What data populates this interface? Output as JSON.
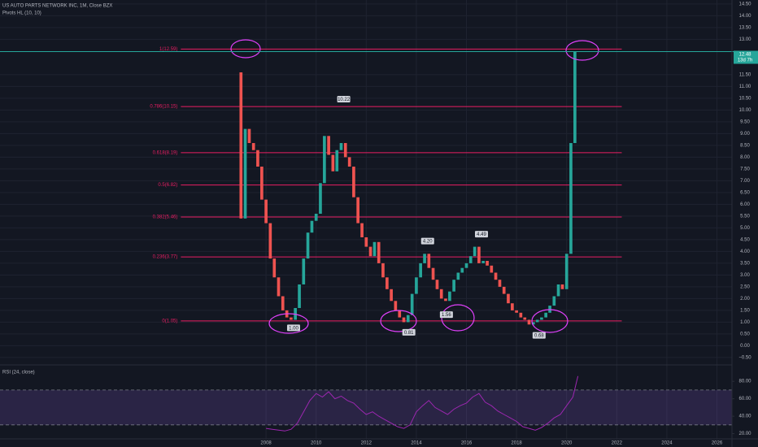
{
  "chart_data": {
    "type": "candlestick",
    "title": "US AUTO PARTS NETWORK INC, 1M, Close BZX",
    "subtitle": "Pivots HL (10, 10)",
    "x": [
      2007,
      2007.17,
      2007.33,
      2007.5,
      2007.67,
      2007.83,
      2008,
      2008.17,
      2008.33,
      2008.5,
      2008.67,
      2008.83,
      2009,
      2009.17,
      2009.33,
      2009.5,
      2009.67,
      2009.83,
      2010,
      2010.17,
      2010.33,
      2010.5,
      2010.67,
      2010.83,
      2011,
      2011.17,
      2011.33,
      2011.5,
      2011.67,
      2011.83,
      2012,
      2012.17,
      2012.33,
      2012.5,
      2012.67,
      2012.83,
      2013,
      2013.17,
      2013.33,
      2013.5,
      2013.67,
      2013.83,
      2014,
      2014.17,
      2014.33,
      2014.5,
      2014.67,
      2014.83,
      2015,
      2015.17,
      2015.33,
      2015.5,
      2015.67,
      2015.83,
      2016,
      2016.17,
      2016.33,
      2016.5,
      2016.67,
      2016.83,
      2017,
      2017.17,
      2017.33,
      2017.5,
      2017.67,
      2017.83,
      2018,
      2018.17,
      2018.33,
      2018.5,
      2018.67,
      2018.83,
      2019,
      2019.17,
      2019.33,
      2019.5,
      2019.67,
      2019.83,
      2020,
      2020.17,
      2020.33
    ],
    "open": [
      11.6,
      5.4,
      9.2,
      8.6,
      8.3,
      7.6,
      6.2,
      5.2,
      3.7,
      2.9,
      2.1,
      1.5,
      1.2,
      1.1,
      1.6,
      2.6,
      3.7,
      4.8,
      5.3,
      5.6,
      6.9,
      8.9,
      8.1,
      7.4,
      8.3,
      8.6,
      8.0,
      7.6,
      6.3,
      5.2,
      4.6,
      4.2,
      3.8,
      4.4,
      3.5,
      2.9,
      2.4,
      1.9,
      1.5,
      1.2,
      1.0,
      1.3,
      2.2,
      2.9,
      3.5,
      3.9,
      3.3,
      2.8,
      2.4,
      2.0,
      1.9,
      2.3,
      2.8,
      3.1,
      3.3,
      3.5,
      3.8,
      4.2,
      3.5,
      3.6,
      3.4,
      3.1,
      2.8,
      2.5,
      2.2,
      1.8,
      1.5,
      1.4,
      1.2,
      1.1,
      0.9,
      1.0,
      1.1,
      1.2,
      1.4,
      1.7,
      2.1,
      2.6,
      2.4,
      3.9,
      8.6
    ],
    "close": [
      5.4,
      9.2,
      8.6,
      8.3,
      7.6,
      6.2,
      5.2,
      3.7,
      2.9,
      2.1,
      1.5,
      1.2,
      1.1,
      1.6,
      2.6,
      3.7,
      4.8,
      5.3,
      5.6,
      6.9,
      8.9,
      8.1,
      7.4,
      8.3,
      8.6,
      8.0,
      7.6,
      6.3,
      5.2,
      4.6,
      4.2,
      3.8,
      4.4,
      3.5,
      2.9,
      2.4,
      1.9,
      1.5,
      1.2,
      1.0,
      1.3,
      2.2,
      2.9,
      3.5,
      3.9,
      3.3,
      2.8,
      2.4,
      2.0,
      1.9,
      2.3,
      2.8,
      3.1,
      3.3,
      3.5,
      3.8,
      4.2,
      3.5,
      3.6,
      3.4,
      3.1,
      2.8,
      2.5,
      2.2,
      1.8,
      1.5,
      1.4,
      1.2,
      1.1,
      0.9,
      1.0,
      1.1,
      1.2,
      1.4,
      1.7,
      2.1,
      2.6,
      2.4,
      3.9,
      8.6,
      12.48
    ],
    "up_color": "#26a69a",
    "down_color": "#ef5350",
    "xlim": [
      1997.38,
      2026.6
    ],
    "xticks": [
      2008,
      2010,
      2012,
      2014,
      2016,
      2018,
      2020,
      2022,
      2024,
      2026
    ],
    "ylim": [
      -0.78,
      14.67
    ],
    "yticks": [
      {
        "value": 14.5,
        "label": "14.50"
      },
      {
        "value": 14,
        "label": "14.00"
      },
      {
        "value": 13.5,
        "label": "13.50"
      },
      {
        "value": 13,
        "label": "13.00"
      },
      {
        "value": 11.5,
        "label": "11.50"
      },
      {
        "value": 11,
        "label": "11.00"
      },
      {
        "value": 10.5,
        "label": "10.50"
      },
      {
        "value": 10,
        "label": "10.00"
      },
      {
        "value": 9.5,
        "label": "9.50"
      },
      {
        "value": 9,
        "label": "9.00"
      },
      {
        "value": 8.5,
        "label": "8.50"
      },
      {
        "value": 8,
        "label": "8.00"
      },
      {
        "value": 7.5,
        "label": "7.50"
      },
      {
        "value": 7,
        "label": "7.00"
      },
      {
        "value": 6.5,
        "label": "6.50"
      },
      {
        "value": 6,
        "label": "6.00"
      },
      {
        "value": 5.5,
        "label": "5.50"
      },
      {
        "value": 5,
        "label": "5.00"
      },
      {
        "value": 4.5,
        "label": "4.50"
      },
      {
        "value": 4,
        "label": "4.00"
      },
      {
        "value": 3.5,
        "label": "3.50"
      },
      {
        "value": 3,
        "label": "3.00"
      },
      {
        "value": 2.5,
        "label": "2.50"
      },
      {
        "value": 2,
        "label": "2.00"
      },
      {
        "value": 1.5,
        "label": "1.50"
      },
      {
        "value": 1,
        "label": "1.00"
      },
      {
        "value": 0.5,
        "label": "0.50"
      },
      {
        "value": 0,
        "label": "0.00"
      },
      {
        "value": -0.5,
        "label": "−0.50"
      }
    ],
    "grid": true,
    "fib": {
      "color": "#e91e63",
      "x_range": [
        2004.6,
        2022.2
      ],
      "levels": [
        {
          "value": 12.59,
          "label": "1(12.59)"
        },
        {
          "value": 10.15,
          "label": "0.786(10.15)"
        },
        {
          "value": 8.19,
          "label": "0.618(8.19)"
        },
        {
          "value": 6.82,
          "label": "0.5(6.82)"
        },
        {
          "value": 5.46,
          "label": "0.382(5.46)"
        },
        {
          "value": 3.77,
          "label": "0.236(3.77)"
        },
        {
          "value": 1.05,
          "label": "0(1.05)"
        }
      ]
    },
    "pivots": [
      {
        "x": 2009.1,
        "value": 1.0,
        "label": "1.00",
        "kind": "low"
      },
      {
        "x": 2011.1,
        "value": 10.22,
        "label": "10.22",
        "kind": "high"
      },
      {
        "x": 2013.7,
        "value": 0.81,
        "label": "0.81",
        "kind": "low"
      },
      {
        "x": 2014.45,
        "value": 4.2,
        "label": "4.20",
        "kind": "high"
      },
      {
        "x": 2015.2,
        "value": 1.56,
        "label": "1.56",
        "kind": "low"
      },
      {
        "x": 2016.6,
        "value": 4.49,
        "label": "4.49",
        "kind": "high"
      },
      {
        "x": 2018.9,
        "value": 0.68,
        "label": "0.68",
        "kind": "low"
      }
    ],
    "last_price": {
      "value": 12.48,
      "label": "12.48",
      "countdown": "13d 7h",
      "color": "#26a69a"
    },
    "rsi": {
      "title": "RSI (24, close)",
      "color": "#9c27b0",
      "x": [
        2008,
        2008.25,
        2008.5,
        2008.75,
        2009,
        2009.25,
        2009.5,
        2009.75,
        2010,
        2010.25,
        2010.5,
        2010.75,
        2011,
        2011.25,
        2011.5,
        2011.75,
        2012,
        2012.25,
        2012.5,
        2012.75,
        2013,
        2013.25,
        2013.5,
        2013.75,
        2014,
        2014.25,
        2014.5,
        2014.75,
        2015,
        2015.25,
        2015.5,
        2015.75,
        2016,
        2016.25,
        2016.5,
        2016.75,
        2017,
        2017.25,
        2017.5,
        2017.75,
        2018,
        2018.25,
        2018.5,
        2018.75,
        2019,
        2019.25,
        2019.5,
        2019.75,
        2020,
        2020.25,
        2020.45
      ],
      "values": [
        26,
        25,
        24,
        23,
        25,
        32,
        45,
        58,
        66,
        62,
        68,
        60,
        63,
        58,
        55,
        48,
        42,
        45,
        40,
        36,
        32,
        28,
        26,
        30,
        45,
        52,
        58,
        50,
        46,
        42,
        48,
        52,
        55,
        62,
        66,
        56,
        52,
        46,
        42,
        38,
        34,
        28,
        26,
        24,
        27,
        32,
        38,
        42,
        52,
        62,
        86
      ],
      "ylim": [
        14,
        96
      ],
      "yticks": [
        {
          "value": 80,
          "label": "80.00"
        },
        {
          "value": 60,
          "label": "60.00"
        },
        {
          "value": 40,
          "label": "40.00"
        },
        {
          "value": 20,
          "label": "20.00"
        }
      ],
      "band": [
        30,
        70
      ]
    }
  }
}
